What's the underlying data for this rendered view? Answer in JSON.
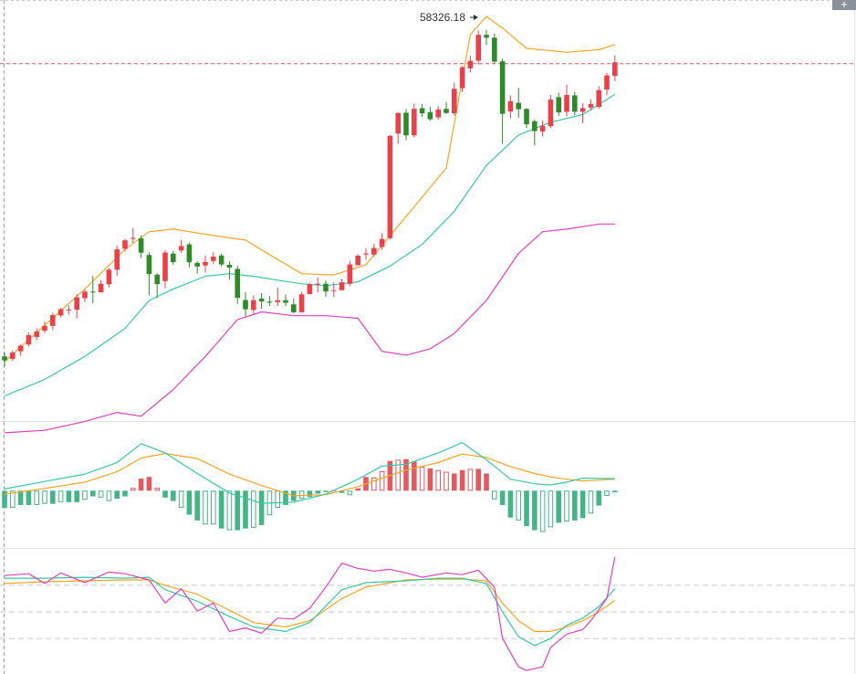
{
  "colors": {
    "up": "#e8414b",
    "down": "#2f8a2a",
    "boll_upper": "#f5a623",
    "boll_mid": "#38c7a4",
    "boll_lower": "#e040c0",
    "dif": "#38c7a4",
    "dea": "#f5a623",
    "hist_pos": "#e05a60",
    "hist_neg": "#45b486",
    "k": "#38c7a4",
    "d": "#f5a623",
    "j": "#e040c0",
    "grid": "#d9d9d9",
    "crosshair": "#e05a60"
  },
  "toolbar": {
    "add_label": "+"
  },
  "chart_data": [
    {
      "type": "candlestick",
      "panel": "price",
      "title": "",
      "max_label": "58326.18",
      "ylim": [
        43000,
        59500
      ],
      "crosshair_price": 57000,
      "candles": [
        [
          45502,
          45350,
          45663,
          45122
        ],
        [
          45405,
          45653,
          45741,
          45318
        ],
        [
          45701,
          45925,
          45967,
          45525
        ],
        [
          45974,
          46335,
          46442,
          45891
        ],
        [
          46267,
          46482,
          46605,
          46137
        ],
        [
          46513,
          46700,
          46864,
          46417
        ],
        [
          46700,
          47125,
          47220,
          46544
        ],
        [
          47110,
          47354,
          47416,
          47041
        ],
        [
          47334,
          47346,
          47510,
          47143
        ],
        [
          47337,
          47823,
          47954,
          46988
        ],
        [
          47789,
          48047,
          48114,
          47637
        ],
        [
          48047,
          48025,
          48662,
          47591
        ],
        [
          48016,
          48358,
          48503,
          48214
        ],
        [
          48332,
          48906,
          48972,
          48206
        ],
        [
          48906,
          49708,
          49854,
          48669
        ],
        [
          49732,
          50059,
          50115,
          49628
        ],
        [
          50152,
          50152,
          50552,
          49962
        ],
        [
          50143,
          49575,
          50243,
          49362
        ],
        [
          49484,
          48733,
          49583,
          47910
        ],
        [
          48714,
          48342,
          48770,
          47794
        ],
        [
          48459,
          49580,
          49676,
          48178
        ],
        [
          49542,
          49203,
          49648,
          49101
        ],
        [
          49663,
          49837,
          50081,
          49565
        ],
        [
          49902,
          49199,
          49972,
          49003
        ],
        [
          49172,
          49033,
          49238,
          48750
        ],
        [
          49071,
          49212,
          49466,
          48795
        ],
        [
          49251,
          49421,
          49597,
          49136
        ],
        [
          49465,
          49114,
          49545,
          49035
        ],
        [
          49100,
          48993,
          49240,
          48521
        ],
        [
          48940,
          47800,
          49060,
          47561
        ],
        [
          47716,
          47355,
          48026,
          47077
        ],
        [
          47325,
          47709,
          47905,
          47167
        ],
        [
          47773,
          47659,
          47989,
          47377
        ],
        [
          47652,
          47612,
          47875,
          47487
        ],
        [
          47635,
          47709,
          48211,
          47483
        ],
        [
          47709,
          47608,
          47934,
          47485
        ],
        [
          47546,
          47236,
          47779,
          47199
        ],
        [
          47236,
          47939,
          48039,
          47343
        ],
        [
          47946,
          48338,
          48386,
          49525
        ],
        [
          48355,
          48359,
          48602,
          48026
        ],
        [
          48355,
          48055,
          48481,
          47838
        ],
        [
          48104,
          48105,
          48409,
          47834
        ],
        [
          48102,
          48414,
          48550,
          48196
        ],
        [
          48351,
          49113,
          49258,
          48264
        ],
        [
          49080,
          49456,
          49518,
          49077
        ],
        [
          49503,
          49544,
          49757,
          49303
        ],
        [
          49500,
          49760,
          49921,
          49422
        ],
        [
          49799,
          50115,
          50337,
          49692
        ],
        [
          50145,
          54163,
          54198,
          50091
        ],
        [
          54257,
          55062,
          55094,
          53853
        ],
        [
          55071,
          54184,
          55216,
          53994
        ],
        [
          54184,
          55226,
          55428,
          54100
        ],
        [
          55250,
          55049,
          55412,
          54899
        ],
        [
          55098,
          54815,
          55309,
          54754
        ],
        [
          54890,
          55200,
          55333,
          54802
        ],
        [
          55225,
          55061,
          55482,
          55027
        ],
        [
          55051,
          56013,
          56256,
          54948
        ],
        [
          56036,
          56860,
          56902,
          55879
        ],
        [
          56815,
          57112,
          57319,
          56666
        ],
        [
          57115,
          58133,
          58305,
          56958
        ],
        [
          58132,
          58019,
          58326,
          57729
        ],
        [
          58021,
          57079,
          58183,
          56999
        ],
        [
          57092,
          55029,
          57198,
          53851
        ],
        [
          55122,
          55528,
          55754,
          54851
        ],
        [
          55462,
          55208,
          56050,
          54877
        ],
        [
          55223,
          54621,
          55256,
          54468
        ],
        [
          54741,
          54350,
          54810,
          53795
        ],
        [
          54333,
          54561,
          54776,
          54141
        ],
        [
          54544,
          55590,
          55771,
          54470
        ],
        [
          55684,
          55084,
          55867,
          54946
        ],
        [
          55108,
          55768,
          56184,
          54927
        ],
        [
          55752,
          55110,
          55900,
          54968
        ],
        [
          55110,
          55253,
          55440,
          54659
        ],
        [
          55277,
          55417,
          55597,
          55163
        ],
        [
          55302,
          55958,
          56115,
          55232
        ],
        [
          55982,
          56537,
          56638,
          55756
        ],
        [
          56519,
          57053,
          57329,
          56315
        ]
      ],
      "boll": {
        "upper": [
          [
            0,
            45300
          ],
          [
            10,
            48150
          ],
          [
            15,
            49700
          ],
          [
            18,
            50400
          ],
          [
            21,
            50500
          ],
          [
            25,
            50300
          ],
          [
            30,
            50070
          ],
          [
            33,
            49500
          ],
          [
            37,
            48750
          ],
          [
            41,
            48700
          ],
          [
            45,
            49100
          ],
          [
            50,
            51000
          ],
          [
            55,
            52900
          ],
          [
            58,
            58150
          ],
          [
            60,
            58850
          ],
          [
            62,
            58400
          ],
          [
            65,
            57600
          ],
          [
            70,
            57450
          ],
          [
            74,
            57550
          ],
          [
            76,
            57750
          ]
        ],
        "mid": [
          [
            0,
            43950
          ],
          [
            5,
            44600
          ],
          [
            10,
            45500
          ],
          [
            15,
            46600
          ],
          [
            18,
            47700
          ],
          [
            21,
            48150
          ],
          [
            25,
            48650
          ],
          [
            28,
            48750
          ],
          [
            31,
            48650
          ],
          [
            34,
            48500
          ],
          [
            37,
            48350
          ],
          [
            40,
            48280
          ],
          [
            44,
            48430
          ],
          [
            48,
            49050
          ],
          [
            52,
            49900
          ],
          [
            56,
            51200
          ],
          [
            60,
            53000
          ],
          [
            64,
            54200
          ],
          [
            68,
            54700
          ],
          [
            72,
            55000
          ],
          [
            76,
            55800
          ]
        ],
        "lower": [
          [
            0,
            42500
          ],
          [
            5,
            42600
          ],
          [
            10,
            42950
          ],
          [
            14,
            43300
          ],
          [
            17,
            43150
          ],
          [
            21,
            44200
          ],
          [
            25,
            45500
          ],
          [
            29,
            46950
          ],
          [
            32,
            47250
          ],
          [
            36,
            47100
          ],
          [
            40,
            47100
          ],
          [
            44,
            47000
          ],
          [
            47,
            45700
          ],
          [
            50,
            45550
          ],
          [
            53,
            45800
          ],
          [
            56,
            46400
          ],
          [
            60,
            47700
          ],
          [
            64,
            49550
          ],
          [
            67,
            50400
          ],
          [
            70,
            50500
          ],
          [
            74,
            50700
          ],
          [
            76,
            50700
          ]
        ]
      }
    },
    {
      "type": "macd",
      "panel": "macd",
      "ylim": [
        -1000,
        1200
      ],
      "dif": [
        [
          0,
          30
        ],
        [
          5,
          160
        ],
        [
          10,
          290
        ],
        [
          14,
          490
        ],
        [
          17,
          820
        ],
        [
          20,
          660
        ],
        [
          24,
          300
        ],
        [
          28,
          -40
        ],
        [
          32,
          -220
        ],
        [
          36,
          -200
        ],
        [
          40,
          -60
        ],
        [
          44,
          200
        ],
        [
          47,
          430
        ],
        [
          50,
          460
        ],
        [
          54,
          660
        ],
        [
          57,
          840
        ],
        [
          60,
          540
        ],
        [
          63,
          200
        ],
        [
          66,
          120
        ],
        [
          68,
          100
        ],
        [
          70,
          150
        ],
        [
          72,
          220
        ],
        [
          76,
          210
        ]
      ],
      "dea": [
        [
          0,
          -60
        ],
        [
          5,
          40
        ],
        [
          10,
          150
        ],
        [
          14,
          330
        ],
        [
          17,
          570
        ],
        [
          20,
          650
        ],
        [
          24,
          560
        ],
        [
          28,
          290
        ],
        [
          32,
          90
        ],
        [
          36,
          -90
        ],
        [
          40,
          -70
        ],
        [
          44,
          70
        ],
        [
          47,
          220
        ],
        [
          50,
          360
        ],
        [
          54,
          490
        ],
        [
          57,
          640
        ],
        [
          60,
          580
        ],
        [
          63,
          420
        ],
        [
          66,
          300
        ],
        [
          68,
          240
        ],
        [
          70,
          200
        ],
        [
          72,
          170
        ],
        [
          76,
          200
        ]
      ],
      "hist": [
        -300,
        -300,
        -250,
        -250,
        -250,
        -230,
        -230,
        -200,
        -200,
        -200,
        -160,
        -100,
        -120,
        -180,
        -140,
        -100,
        50,
        210,
        240,
        50,
        -120,
        -180,
        -300,
        -420,
        -520,
        -590,
        -590,
        -660,
        -690,
        -690,
        -660,
        -650,
        -600,
        -430,
        -300,
        -250,
        -180,
        -140,
        -110,
        -50,
        -20,
        10,
        -40,
        -80,
        40,
        240,
        230,
        340,
        520,
        540,
        550,
        510,
        420,
        390,
        360,
        330,
        300,
        360,
        380,
        380,
        300,
        -150,
        -250,
        -470,
        -520,
        -620,
        -690,
        -720,
        -640,
        -560,
        -540,
        -520,
        -480,
        -400,
        -260,
        -90,
        -30
      ]
    },
    {
      "type": "kdj",
      "panel": "kdj",
      "ylim": [
        -20,
        120
      ],
      "reference_lines": [
        80,
        50,
        20
      ],
      "k": [
        [
          0,
          88
        ],
        [
          5,
          88
        ],
        [
          10,
          89
        ],
        [
          15,
          88
        ],
        [
          18,
          89
        ],
        [
          20,
          75
        ],
        [
          24,
          62
        ],
        [
          28,
          45
        ],
        [
          31,
          33
        ],
        [
          35,
          28
        ],
        [
          38,
          38
        ],
        [
          42,
          75
        ],
        [
          45,
          83
        ],
        [
          50,
          85
        ],
        [
          54,
          88
        ],
        [
          57,
          88
        ],
        [
          60,
          82
        ],
        [
          62,
          50
        ],
        [
          64,
          22
        ],
        [
          66,
          12
        ],
        [
          68,
          20
        ],
        [
          70,
          35
        ],
        [
          72,
          43
        ],
        [
          74,
          56
        ],
        [
          76,
          76
        ]
      ],
      "d": [
        [
          0,
          82
        ],
        [
          5,
          84
        ],
        [
          10,
          85
        ],
        [
          15,
          86
        ],
        [
          18,
          86
        ],
        [
          20,
          80
        ],
        [
          24,
          70
        ],
        [
          28,
          52
        ],
        [
          31,
          38
        ],
        [
          35,
          33
        ],
        [
          38,
          40
        ],
        [
          42,
          65
        ],
        [
          45,
          78
        ],
        [
          50,
          86
        ],
        [
          54,
          87
        ],
        [
          57,
          87
        ],
        [
          60,
          85
        ],
        [
          62,
          60
        ],
        [
          64,
          40
        ],
        [
          66,
          28
        ],
        [
          68,
          28
        ],
        [
          70,
          33
        ],
        [
          72,
          40
        ],
        [
          74,
          50
        ],
        [
          76,
          63
        ]
      ],
      "j": [
        [
          0,
          91
        ],
        [
          3,
          93
        ],
        [
          5,
          82
        ],
        [
          7,
          94
        ],
        [
          10,
          83
        ],
        [
          13,
          95
        ],
        [
          15,
          93
        ],
        [
          18,
          86
        ],
        [
          20,
          60
        ],
        [
          22,
          76
        ],
        [
          24,
          51
        ],
        [
          26,
          60
        ],
        [
          28,
          28
        ],
        [
          30,
          32
        ],
        [
          32,
          26
        ],
        [
          34,
          43
        ],
        [
          36,
          42
        ],
        [
          38,
          54
        ],
        [
          40,
          78
        ],
        [
          42,
          105
        ],
        [
          44,
          99
        ],
        [
          46,
          96
        ],
        [
          48,
          98
        ],
        [
          50,
          94
        ],
        [
          52,
          89
        ],
        [
          55,
          94
        ],
        [
          57,
          92
        ],
        [
          59,
          97
        ],
        [
          61,
          78
        ],
        [
          62,
          20
        ],
        [
          64,
          -12
        ],
        [
          65,
          -16
        ],
        [
          67,
          -12
        ],
        [
          68,
          10
        ],
        [
          70,
          25
        ],
        [
          72,
          30
        ],
        [
          73,
          40
        ],
        [
          75,
          65
        ],
        [
          76,
          112
        ]
      ]
    }
  ]
}
